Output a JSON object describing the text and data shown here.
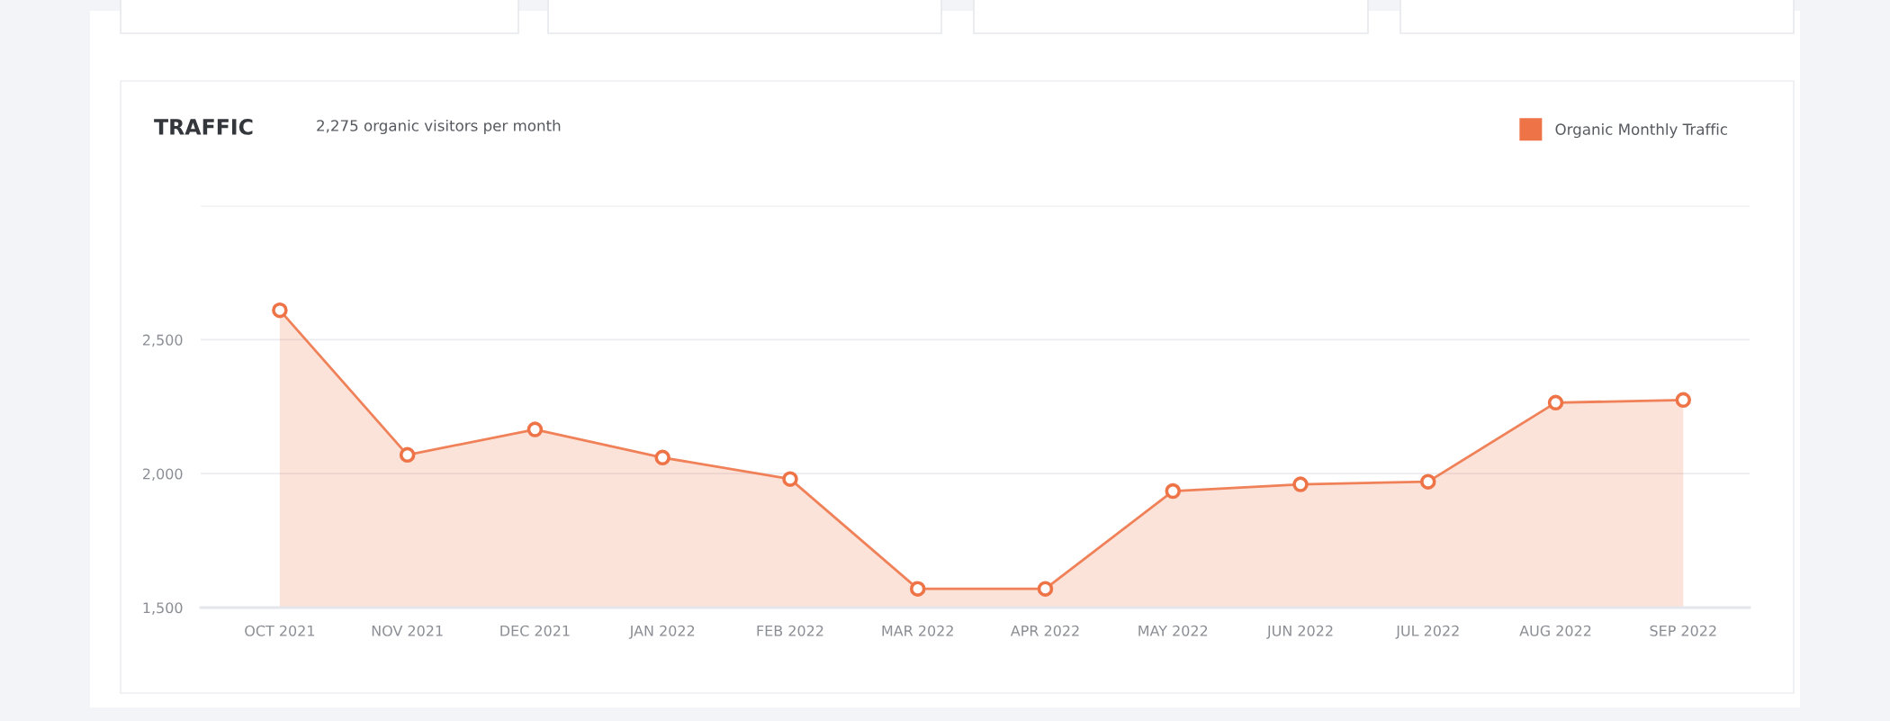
{
  "chart_data": {
    "type": "area",
    "title": "TRAFFIC",
    "subtitle": "2,275 organic visitors per month",
    "categories": [
      "OCT 2021",
      "NOV 2021",
      "DEC 2021",
      "JAN 2022",
      "FEB 2022",
      "MAR 2022",
      "APR 2022",
      "MAY 2022",
      "JUN 2022",
      "JUL 2022",
      "AUG 2022",
      "SEP 2022"
    ],
    "series": [
      {
        "name": "Organic Monthly Traffic",
        "color": "#ee7448",
        "values": [
          2610,
          2070,
          2165,
          2060,
          1980,
          1570,
          1570,
          1935,
          1960,
          1970,
          2265,
          2275
        ]
      }
    ],
    "ylim": [
      1500,
      3000
    ],
    "yticks": [
      {
        "value": 1500,
        "label": "1,500"
      },
      {
        "value": 2000,
        "label": "2,000"
      },
      {
        "value": 2500,
        "label": "2,500"
      },
      {
        "value": 3000,
        "label": null
      }
    ],
    "grid": "y",
    "legend": "top right",
    "marker": "circle",
    "line_style": "solid"
  }
}
